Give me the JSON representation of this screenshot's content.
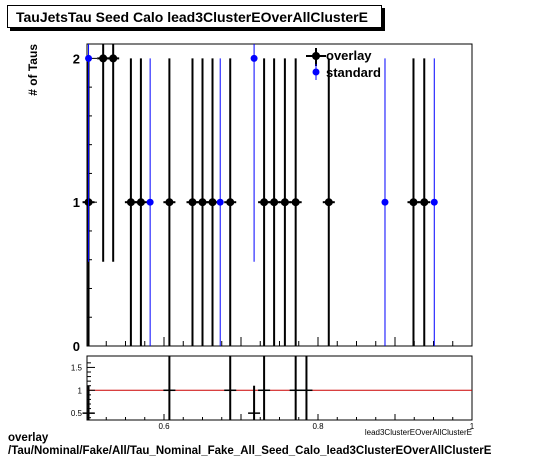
{
  "title": "TauJetsTau Seed Calo lead3ClusterEOverAllClusterE",
  "chart_data": [
    {
      "type": "scatter",
      "ylabel": "# of Taus",
      "xlim": [
        0.5,
        1.0
      ],
      "ylim": [
        0,
        2.1
      ],
      "y_ticks": [
        "0",
        "1",
        "2"
      ],
      "legend_position": "top-right",
      "series": [
        {
          "name": "overlay",
          "color": "#000000",
          "points": [
            {
              "x": 0.502,
              "y": 1
            },
            {
              "x": 0.521,
              "y": 2
            },
            {
              "x": 0.534,
              "y": 2
            },
            {
              "x": 0.557,
              "y": 1
            },
            {
              "x": 0.57,
              "y": 1
            },
            {
              "x": 0.607,
              "y": 1
            },
            {
              "x": 0.637,
              "y": 1
            },
            {
              "x": 0.65,
              "y": 1
            },
            {
              "x": 0.663,
              "y": 1
            },
            {
              "x": 0.686,
              "y": 1
            },
            {
              "x": 0.73,
              "y": 1
            },
            {
              "x": 0.743,
              "y": 1
            },
            {
              "x": 0.757,
              "y": 1
            },
            {
              "x": 0.771,
              "y": 1
            },
            {
              "x": 0.814,
              "y": 1
            },
            {
              "x": 0.924,
              "y": 1
            },
            {
              "x": 0.938,
              "y": 1
            }
          ]
        },
        {
          "name": "standard",
          "color": "#0000ff",
          "points": [
            {
              "x": 0.502,
              "y": 2
            },
            {
              "x": 0.582,
              "y": 1
            },
            {
              "x": 0.673,
              "y": 1
            },
            {
              "x": 0.717,
              "y": 2
            },
            {
              "x": 0.887,
              "y": 1
            },
            {
              "x": 0.951,
              "y": 1
            }
          ]
        }
      ]
    },
    {
      "type": "scatter",
      "xlim": [
        0.5,
        1.0
      ],
      "ylim": [
        0.35,
        1.75
      ],
      "y_ticks": [
        "0.5",
        "1",
        "1.5"
      ],
      "x_ticks": [
        "0.6",
        "0.8",
        "1"
      ],
      "reference_line": 1,
      "reference_color": "#cc0000",
      "points": [
        {
          "x": 0.502,
          "y": 0.5,
          "err": 0.6
        },
        {
          "x": 0.607,
          "y": 1.0,
          "err": 1.0
        },
        {
          "x": 0.686,
          "y": 1.0,
          "err": 1.0
        },
        {
          "x": 0.717,
          "y": 0.5,
          "err": 0.6
        },
        {
          "x": 0.73,
          "y": 1.0,
          "err": 1.0
        },
        {
          "x": 0.771,
          "y": 1.0,
          "err": 1.0
        },
        {
          "x": 0.785,
          "y": 1.0,
          "err": 1.0
        }
      ]
    }
  ],
  "x_axis_label": "lead3ClusterEOverAllClusterE",
  "bottom_label": {
    "line1": "overlay",
    "line2": "/Tau/Nominal/Fake/All/Tau_Nominal_Fake_All_Seed_Calo_lead3ClusterEOverAllClusterE"
  }
}
